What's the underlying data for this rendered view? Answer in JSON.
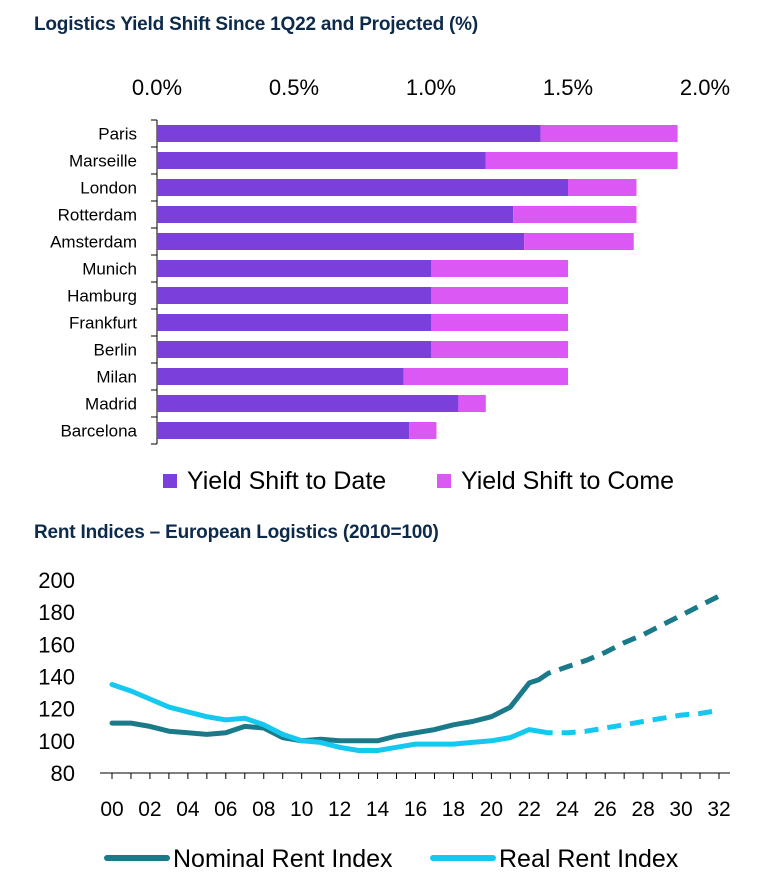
{
  "chart_data": [
    {
      "type": "bar",
      "stacked": true,
      "orientation": "horizontal",
      "title": "Logistics Yield Shift Since 1Q22 and Projected (%)",
      "xlim": [
        0,
        2.0
      ],
      "xticks": [
        "0.0%",
        "0.5%",
        "1.0%",
        "1.5%",
        "2.0%"
      ],
      "xtick_values": [
        0,
        0.5,
        1.0,
        1.5,
        2.0
      ],
      "xaxis_position": "top",
      "categories": [
        "Paris",
        "Marseille",
        "London",
        "Rotterdam",
        "Amsterdam",
        "Munich",
        "Hamburg",
        "Frankfurt",
        "Berlin",
        "Milan",
        "Madrid",
        "Barcelona"
      ],
      "series": [
        {
          "name": "Yield Shift to Date",
          "color": "#7b3fdc",
          "values": [
            1.4,
            1.2,
            1.5,
            1.3,
            1.34,
            1.0,
            1.0,
            1.0,
            1.0,
            0.9,
            1.1,
            0.92
          ]
        },
        {
          "name": "Yield Shift to Come",
          "color": "#dc58f4",
          "values": [
            0.5,
            0.7,
            0.25,
            0.45,
            0.4,
            0.5,
            0.5,
            0.5,
            0.5,
            0.6,
            0.1,
            0.1
          ]
        }
      ],
      "legend_position": "bottom"
    },
    {
      "type": "line",
      "title": "Rent Indices – European Logistics (2010=100)",
      "ylim": [
        80,
        200
      ],
      "yticks": [
        "200",
        "180",
        "160",
        "140",
        "120",
        "100",
        "80"
      ],
      "ytick_values": [
        200,
        180,
        160,
        140,
        120,
        100,
        80
      ],
      "xlim": [
        2000,
        2032
      ],
      "xticks": [
        "00",
        "02",
        "04",
        "06",
        "08",
        "10",
        "12",
        "14",
        "16",
        "18",
        "20",
        "22",
        "24",
        "26",
        "28",
        "30",
        "32"
      ],
      "xtick_values": [
        2000,
        2002,
        2004,
        2006,
        2008,
        2010,
        2012,
        2014,
        2016,
        2018,
        2020,
        2022,
        2024,
        2026,
        2028,
        2030,
        2032
      ],
      "projection_start": 2022.5,
      "series": [
        {
          "name": "Nominal Rent Index",
          "color": "#1a7a8a",
          "x": [
            2000,
            2001,
            2002,
            2003,
            2004,
            2005,
            2006,
            2007,
            2008,
            2009,
            2010,
            2011,
            2012,
            2013,
            2014,
            2015,
            2016,
            2017,
            2018,
            2019,
            2020,
            2021,
            2022,
            2022.5,
            2023,
            2024,
            2025,
            2026,
            2027,
            2028,
            2029,
            2030,
            2031,
            2032
          ],
          "y": [
            111,
            111,
            109,
            106,
            105,
            104,
            105,
            109,
            108,
            102,
            100,
            101,
            100,
            100,
            100,
            103,
            105,
            107,
            110,
            112,
            115,
            121,
            136,
            138,
            142,
            146,
            150,
            155,
            161,
            166,
            172,
            178,
            184,
            190
          ]
        },
        {
          "name": "Real Rent Index",
          "color": "#14c8f0",
          "x": [
            2000,
            2001,
            2002,
            2003,
            2004,
            2005,
            2006,
            2007,
            2008,
            2009,
            2010,
            2011,
            2012,
            2013,
            2014,
            2015,
            2016,
            2017,
            2018,
            2019,
            2020,
            2021,
            2022,
            2022.5,
            2023,
            2024,
            2025,
            2026,
            2027,
            2028,
            2029,
            2030,
            2031,
            2032
          ],
          "y": [
            135,
            131,
            126,
            121,
            118,
            115,
            113,
            114,
            110,
            104,
            100,
            99,
            96,
            94,
            94,
            96,
            98,
            98,
            98,
            99,
            100,
            102,
            107,
            106,
            105,
            105,
            106,
            108,
            110,
            112,
            114,
            116,
            117,
            119
          ]
        }
      ],
      "legend_position": "bottom"
    }
  ]
}
